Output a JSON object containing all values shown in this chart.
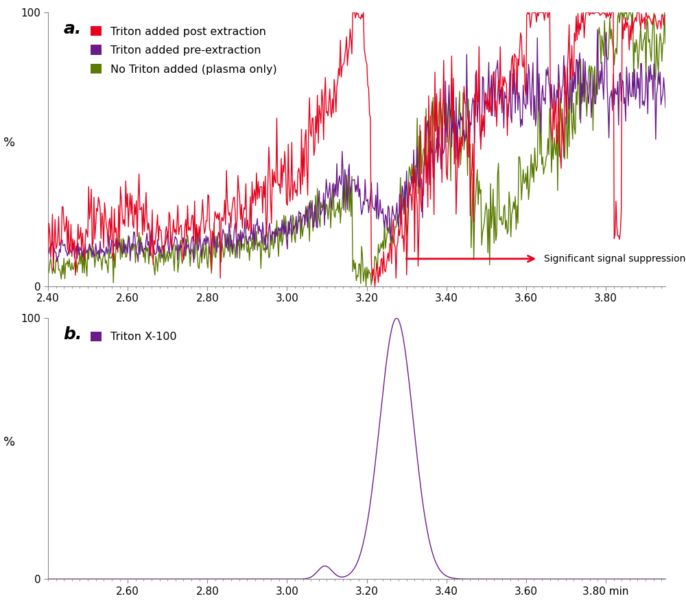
{
  "panel_a_label": "a.",
  "panel_b_label": "b.",
  "ylabel": "%",
  "xlim": [
    2.4,
    3.95
  ],
  "ylim_a": [
    0,
    100
  ],
  "ylim_b": [
    0,
    100
  ],
  "xticks_a": [
    2.4,
    2.6,
    2.8,
    3.0,
    3.2,
    3.4,
    3.6,
    3.8
  ],
  "xtick_labels_a": [
    "2.40",
    "2.60",
    "2.80",
    "3.00",
    "3.20",
    "3.40",
    "3.60",
    "3.80"
  ],
  "xticks_b": [
    2.6,
    2.8,
    3.0,
    3.2,
    3.4,
    3.6,
    3.8
  ],
  "xtick_labels_b": [
    "2.60",
    "2.80",
    "3.00",
    "3.20",
    "3.40",
    "3.60",
    "3.80 min"
  ],
  "ytick_labels": [
    "0",
    "100"
  ],
  "color_red": "#e8001c",
  "color_purple": "#6b1a8a",
  "color_green": "#5a7a00",
  "arrow_color": "#e8001c",
  "annotation_text": "Significant signal suppression",
  "legend_a": [
    "Triton added post extraction",
    "Triton added pre-extraction",
    "No Triton added (plasma only)"
  ],
  "legend_b": [
    "Triton X-100"
  ],
  "line_width": 1.0,
  "tick_fontsize": 11,
  "legend_fontsize": 11.5,
  "ylabel_fontsize": 13,
  "panel_label_fontsize": 18
}
